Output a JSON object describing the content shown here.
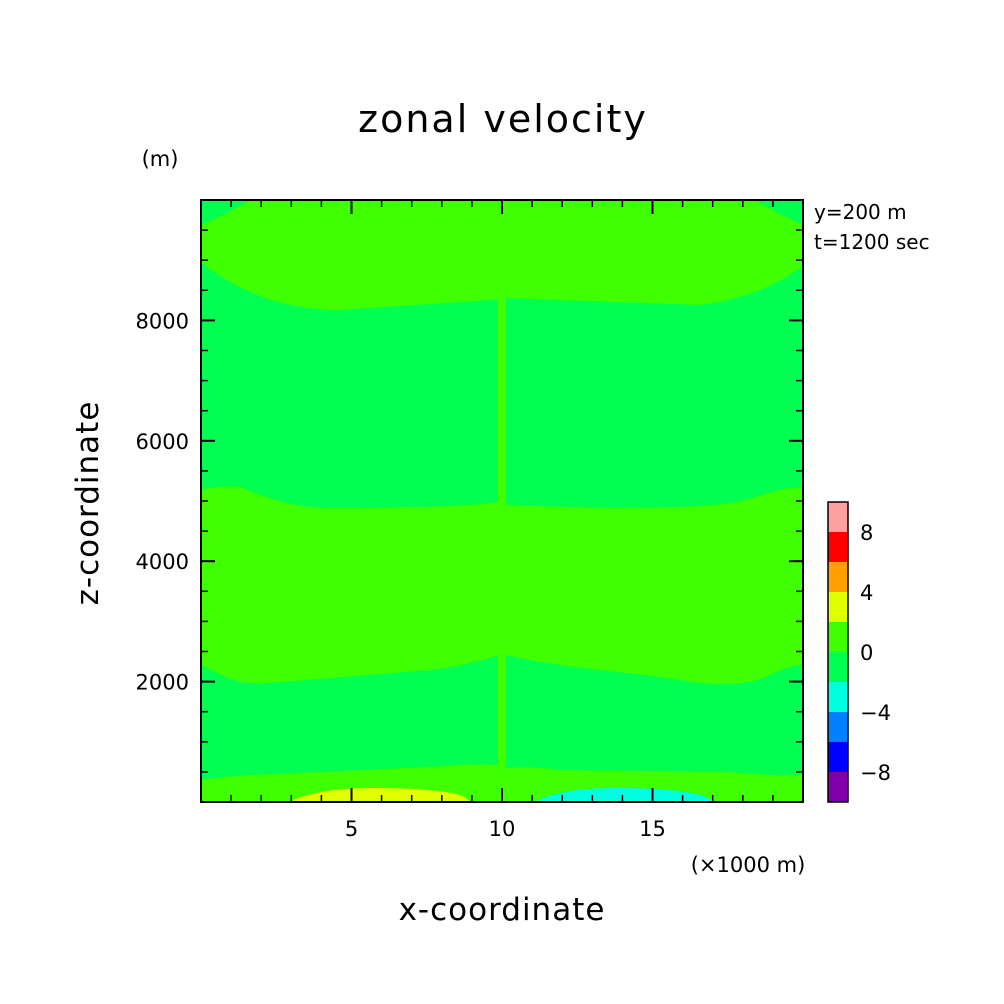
{
  "chart_data": {
    "type": "contour",
    "title": "zonal velocity",
    "xlabel": "x-coordinate",
    "ylabel": "z-coordinate",
    "x_unit_label": "(×1000 m)",
    "y_unit_label": "(m)",
    "annotations": [
      "y=200 m",
      "t=1200 sec"
    ],
    "xlim": [
      0,
      20
    ],
    "ylim": [
      0,
      10000
    ],
    "x_ticks": [
      5,
      10,
      15
    ],
    "x_tick_labels": [
      "5",
      "10",
      "15"
    ],
    "y_ticks": [
      2000,
      4000,
      6000,
      8000
    ],
    "y_tick_labels": [
      "2000",
      "4000",
      "6000",
      "8000"
    ],
    "colorbar": {
      "levels": [
        -10,
        -8,
        -6,
        -4,
        -2,
        0,
        2,
        4,
        6,
        8,
        10
      ],
      "colors": [
        "#7f00a8",
        "#0000ff",
        "#0080ff",
        "#00ffe0",
        "#00ff50",
        "#40ff00",
        "#e0ff00",
        "#ffa000",
        "#ff0000",
        "#ffa0a0"
      ],
      "tick_values": [
        -8,
        -4,
        0,
        4,
        8
      ],
      "tick_labels": [
        "−8",
        "−4",
        "0",
        "4",
        "8"
      ]
    },
    "regions": [
      {
        "range": [
          -2,
          0
        ],
        "color": "#00ff50"
      },
      {
        "range": [
          0,
          2
        ],
        "color": "#40ff00"
      },
      {
        "range": [
          2,
          4
        ],
        "color": "#e0ff00"
      },
      {
        "range": [
          -4,
          -2
        ],
        "color": "#00ffe0"
      }
    ],
    "grid": false,
    "legend": "colorbar-right"
  }
}
